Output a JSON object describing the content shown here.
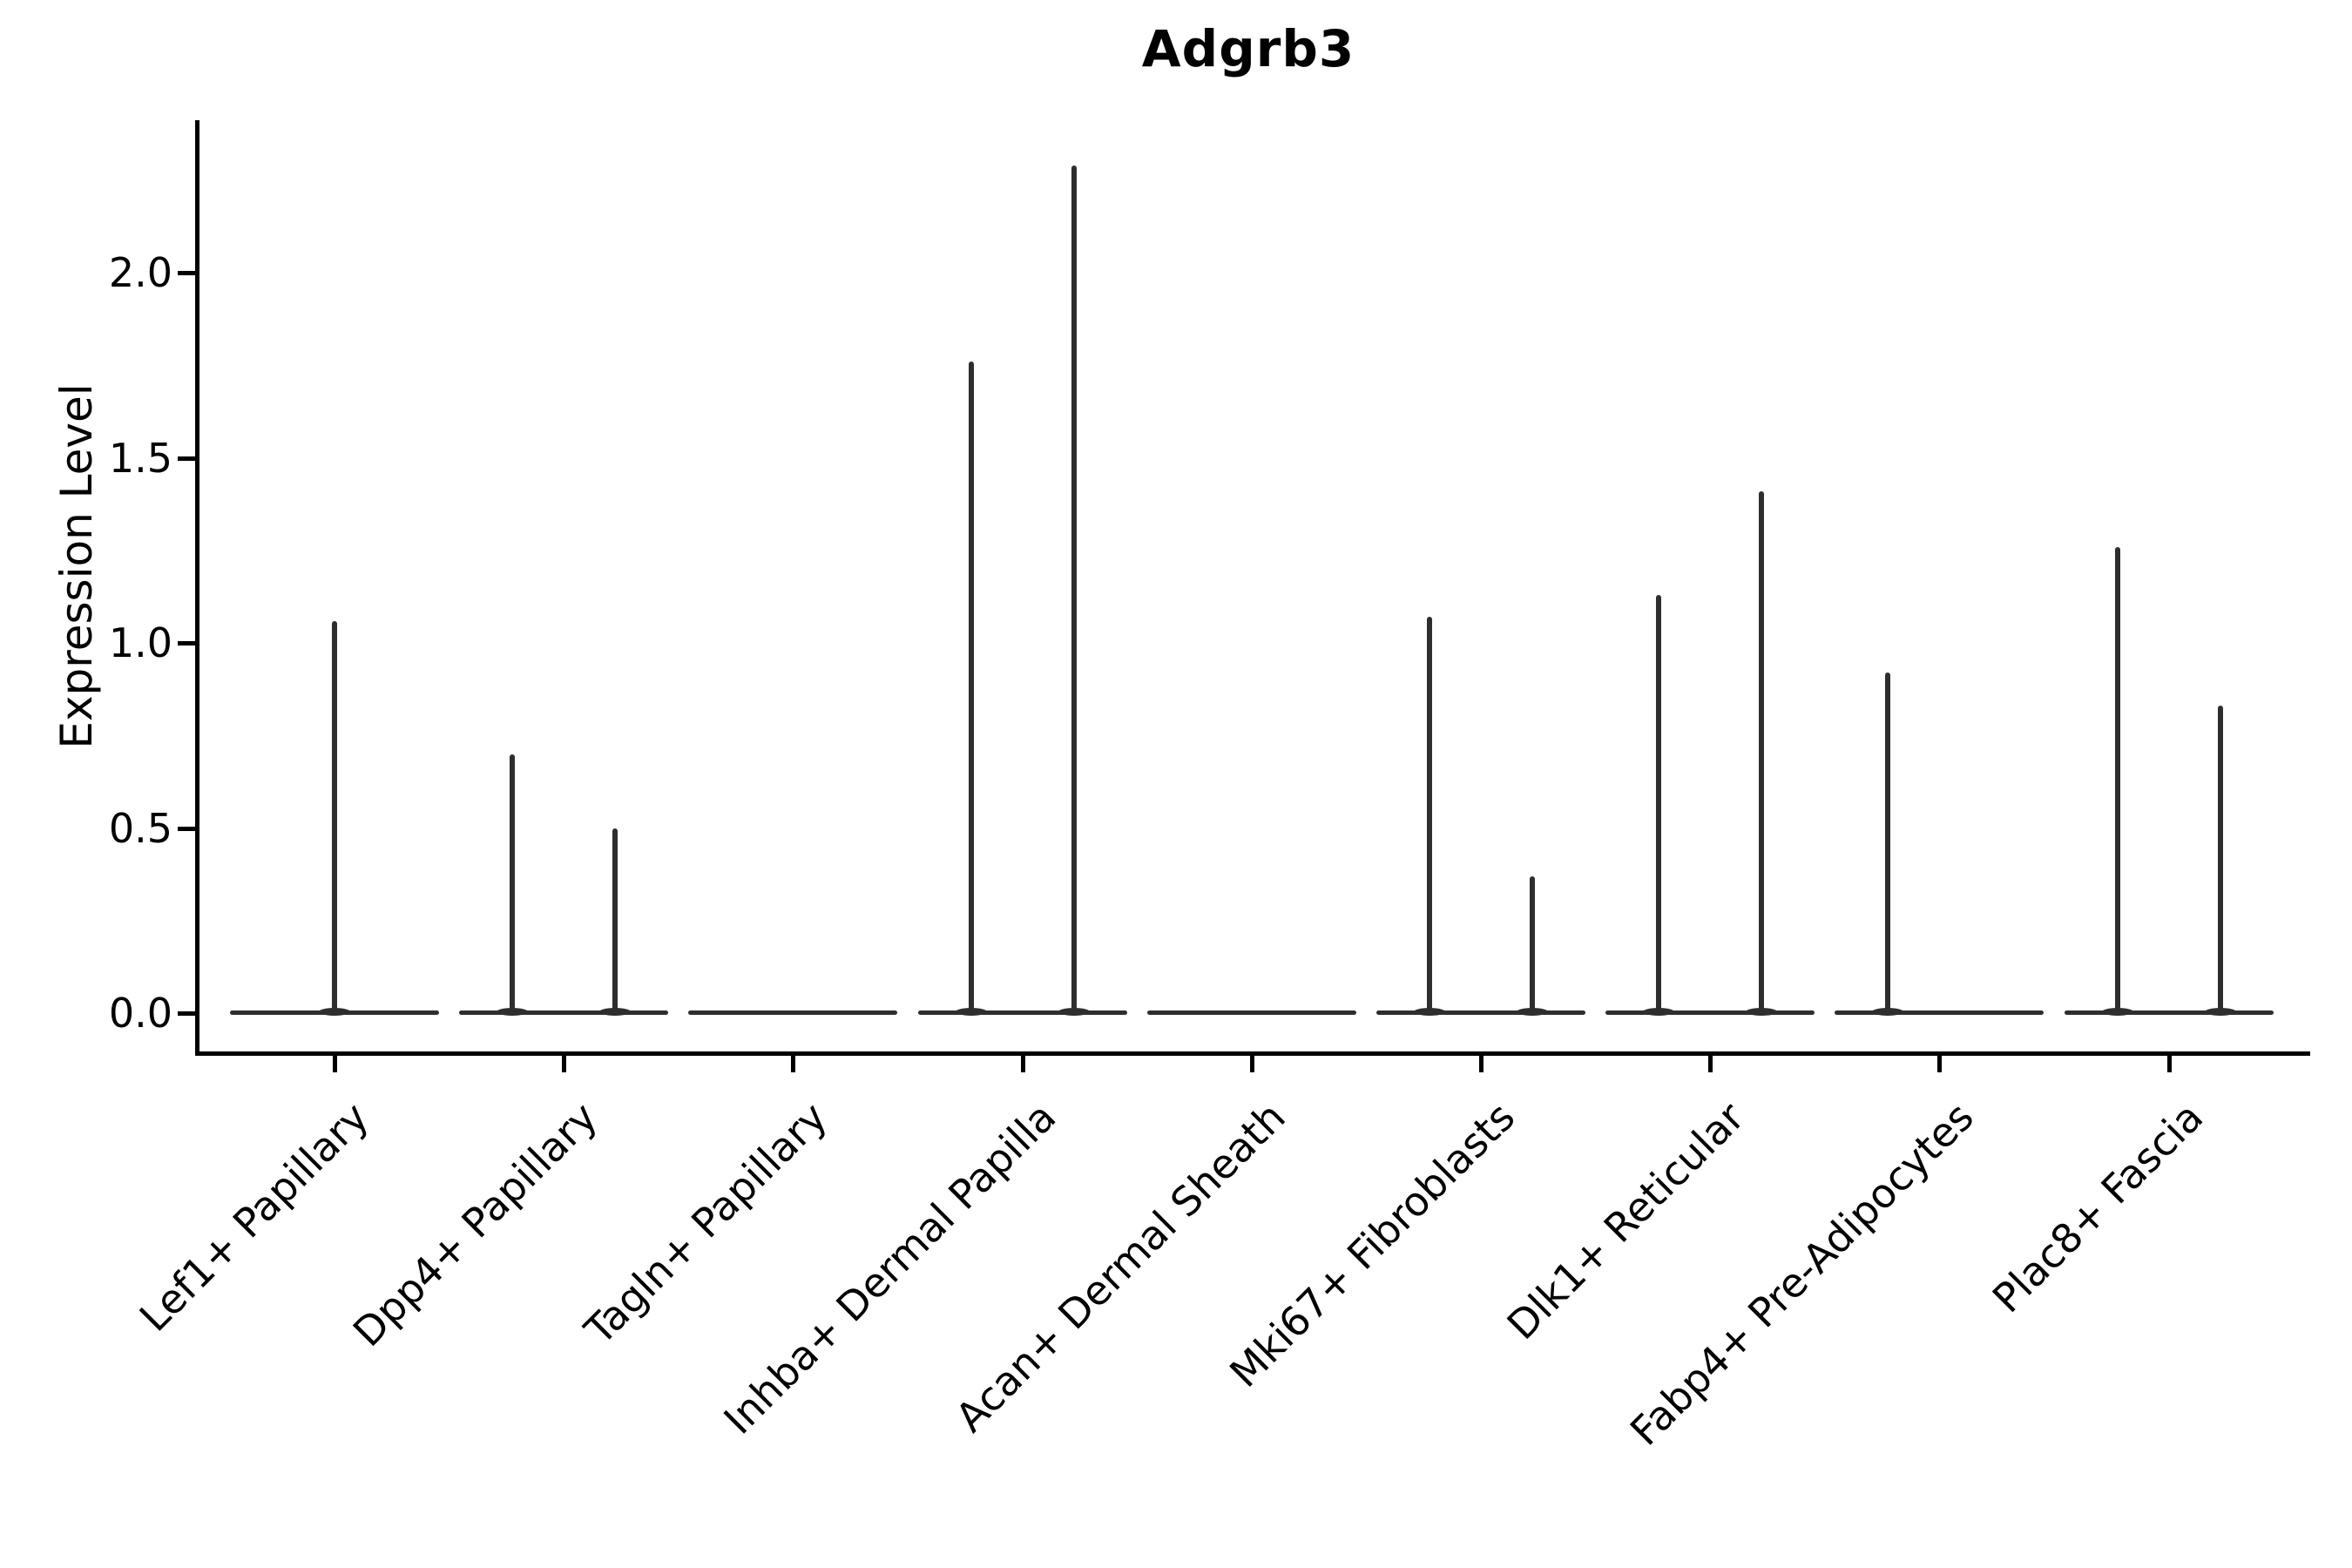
{
  "title": "Adgrb3",
  "y_axis": {
    "label": "Expression Level"
  },
  "chart_data": {
    "type": "violin",
    "title": "Adgrb3",
    "xlabel": "",
    "ylabel": "Expression Level",
    "ylim": [
      -0.11,
      2.41
    ],
    "y_ticks": [
      0.0,
      0.5,
      1.0,
      1.5,
      2.0
    ],
    "y_tick_labels": [
      "0.0",
      "0.5",
      "1.0",
      "1.5",
      "2.0"
    ],
    "grid": false,
    "legend_position": "none",
    "line_color": "#2e2e2e",
    "axis_color": "#000000",
    "categories": [
      "Lef1+ Papillary",
      "Dpp4+ Papillary",
      "Tagln+ Papillary",
      "Inhba+ Dermal Papilla",
      "Acan+ Dermal Sheath",
      "Mki67+ Fibroblasts",
      "Dlk1+ Reticular",
      "Fabp4+ Pre-Adipocytes",
      "Plac8+ Fascia"
    ],
    "violins": [
      {
        "category": "Lef1+ Papillary",
        "baseline_value": 0,
        "spikes": [
          {
            "position": "center",
            "max_expression": 1.06
          }
        ]
      },
      {
        "category": "Dpp4+ Papillary",
        "baseline_value": 0,
        "spikes": [
          {
            "position": "left",
            "max_expression": 0.7
          },
          {
            "position": "right",
            "max_expression": 0.5
          }
        ]
      },
      {
        "category": "Tagln+ Papillary",
        "baseline_value": 0,
        "spikes": []
      },
      {
        "category": "Inhba+ Dermal Papilla",
        "baseline_value": 0,
        "spikes": [
          {
            "position": "left",
            "max_expression": 1.76
          },
          {
            "position": "right",
            "max_expression": 2.29
          }
        ]
      },
      {
        "category": "Acan+ Dermal Sheath",
        "baseline_value": 0,
        "spikes": []
      },
      {
        "category": "Mki67+ Fibroblasts",
        "baseline_value": 0,
        "spikes": [
          {
            "position": "left",
            "max_expression": 1.07
          },
          {
            "position": "right",
            "max_expression": 0.37
          }
        ]
      },
      {
        "category": "Dlk1+ Reticular",
        "baseline_value": 0,
        "spikes": [
          {
            "position": "left",
            "max_expression": 1.13
          },
          {
            "position": "right",
            "max_expression": 1.41
          }
        ]
      },
      {
        "category": "Fabp4+ Pre-Adipocytes",
        "baseline_value": 0,
        "spikes": [
          {
            "position": "left",
            "max_expression": 0.92
          }
        ]
      },
      {
        "category": "Plac8+ Fascia",
        "baseline_value": 0,
        "spikes": [
          {
            "position": "left",
            "max_expression": 1.26
          },
          {
            "position": "right",
            "max_expression": 0.83
          }
        ]
      }
    ]
  }
}
